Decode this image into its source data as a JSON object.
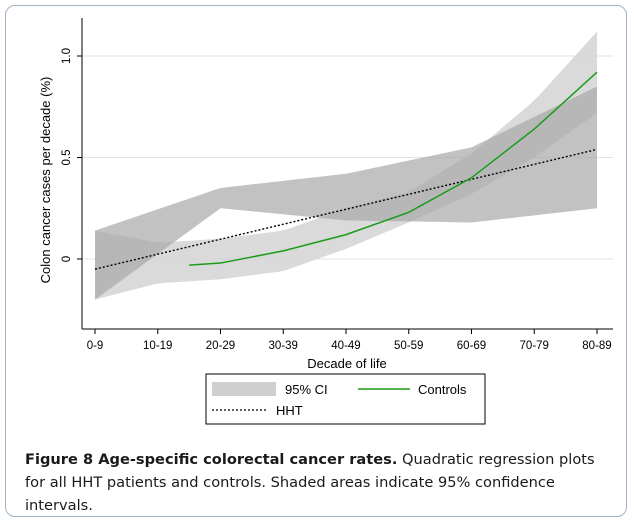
{
  "figure": {
    "caption_title": "Figure 8 Age-specific colorectal cancer rates.",
    "caption_body": "Quadratic regression plots for all HHT patients and controls. Shaded areas indicate 95% confidence intervals."
  },
  "chart_data": {
    "type": "line",
    "xlabel": "Decade of life",
    "ylabel": "Colon cancer cases per decade (%)",
    "categories": [
      "0-9",
      "10-19",
      "20-29",
      "30-39",
      "40-49",
      "50-59",
      "60-69",
      "70-79",
      "80-89"
    ],
    "ylim": [
      -0.35,
      1.12
    ],
    "yticks": [
      0,
      0.5,
      1.0
    ],
    "ytick_labels": [
      "0",
      "0.5",
      "1.0"
    ],
    "grid": "horizontal",
    "legend_position": "bottom",
    "legend": [
      "95% CI",
      "Controls",
      "HHT"
    ],
    "series": [
      {
        "name": "HHT",
        "style": "dotted",
        "color": "#000000",
        "x": [
          0,
          8
        ],
        "y": [
          -0.05,
          0.54
        ],
        "ci_lower": [
          -0.2,
          0.25,
          0.19,
          0.18,
          0.25
        ],
        "ci_upper": [
          0.14,
          0.35,
          0.42,
          0.55,
          0.85
        ],
        "ci_x": [
          0,
          2,
          4,
          6,
          8
        ]
      },
      {
        "name": "Controls",
        "style": "solid",
        "color": "#1a9c1a",
        "x": [
          1.5,
          2,
          3,
          4,
          5,
          6,
          7,
          8
        ],
        "y": [
          -0.03,
          -0.02,
          0.04,
          0.12,
          0.23,
          0.4,
          0.64,
          0.92
        ],
        "ci_x": [
          0,
          1,
          2,
          3,
          4,
          5,
          6,
          7,
          8
        ],
        "ci_lower": [
          -0.2,
          -0.12,
          -0.1,
          -0.06,
          0.05,
          0.18,
          0.32,
          0.5,
          0.72
        ],
        "ci_upper": [
          0.14,
          0.08,
          0.1,
          0.14,
          0.25,
          0.33,
          0.52,
          0.78,
          1.12
        ]
      }
    ]
  }
}
